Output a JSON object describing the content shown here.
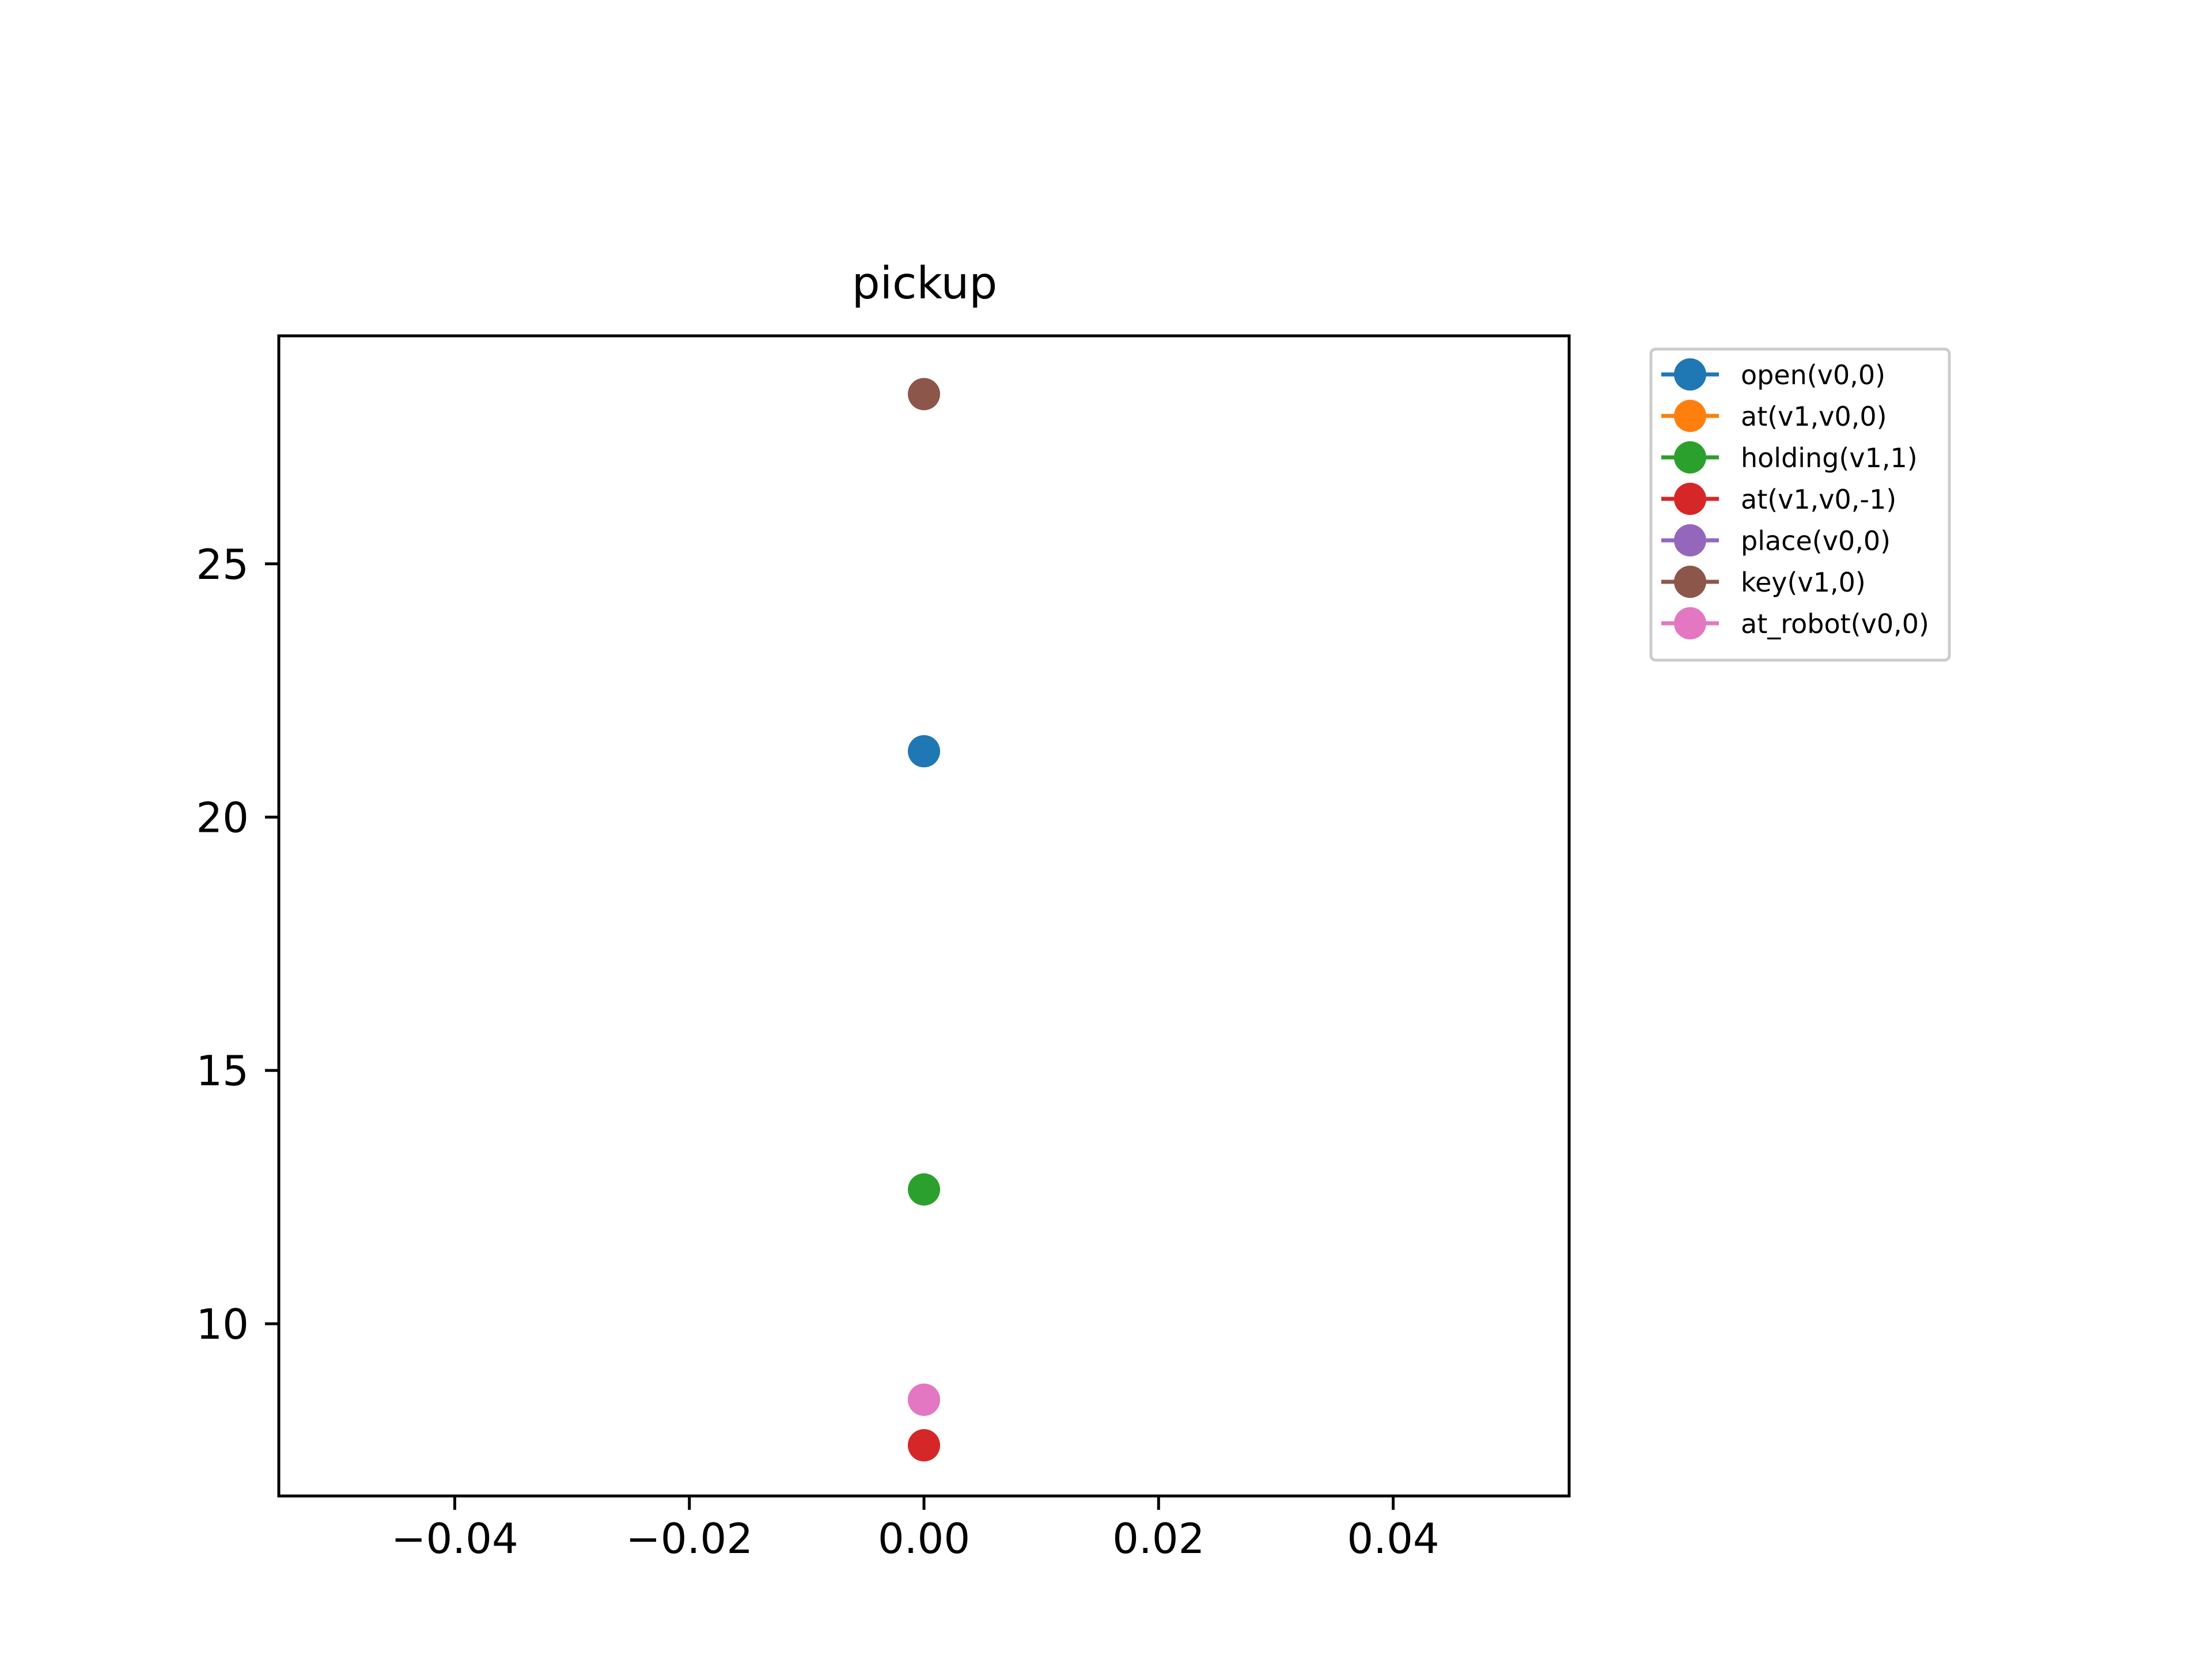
{
  "chart_data": {
    "type": "scatter",
    "title": "pickup",
    "xlabel": "",
    "ylabel": "",
    "xlim": [
      -0.055,
      0.055
    ],
    "ylim": [
      6.6,
      29.5
    ],
    "xticks": [
      -0.04,
      -0.02,
      0.0,
      0.02,
      0.04
    ],
    "xtick_labels": [
      "−0.04",
      "−0.02",
      "0.00",
      "0.02",
      "0.04"
    ],
    "yticks": [
      10,
      15,
      20,
      25
    ],
    "ytick_labels": [
      "10",
      "15",
      "20",
      "25"
    ],
    "grid": false,
    "legend_position": "outside-top-right",
    "series": [
      {
        "name": "open(v0,0)",
        "color": "#1f77b4",
        "x": [
          0.0
        ],
        "y": [
          21.3
        ]
      },
      {
        "name": "at(v1,v0,0)",
        "color": "#ff7f0e",
        "x": [
          0.0
        ],
        "y": [
          7.6
        ]
      },
      {
        "name": "holding(v1,1)",
        "color": "#2ca02c",
        "x": [
          0.0
        ],
        "y": [
          12.65
        ]
      },
      {
        "name": "at(v1,v0,-1)",
        "color": "#d62728",
        "x": [
          0.0
        ],
        "y": [
          7.6
        ]
      },
      {
        "name": "place(v0,0)",
        "color": "#9467bd",
        "x": [
          0.0
        ],
        "y": [
          8.5
        ]
      },
      {
        "name": "key(v1,0)",
        "color": "#8c564b",
        "x": [
          0.0
        ],
        "y": [
          28.35
        ]
      },
      {
        "name": "at_robot(v0,0)",
        "color": "#e377c2",
        "x": [
          0.0
        ],
        "y": [
          8.5
        ]
      }
    ]
  }
}
